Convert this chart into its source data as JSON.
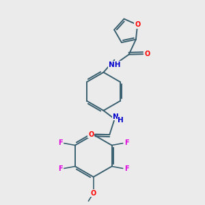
{
  "background_color": "#ebebeb",
  "bond_color": "#3a6070",
  "atom_colors": {
    "O": "#ff0000",
    "N": "#0000cc",
    "F": "#dd00dd",
    "C": "#3a6070"
  },
  "figsize": [
    3.0,
    3.0
  ],
  "dpi": 100
}
